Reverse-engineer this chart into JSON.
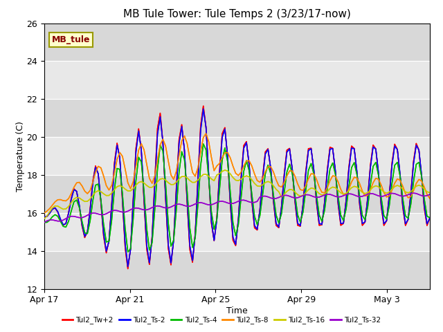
{
  "title": "MB Tule Tower: Tule Temps 2 (3/23/17-now)",
  "xlabel": "Time",
  "ylabel": "Temperature (C)",
  "ylim": [
    12,
    26
  ],
  "yticks": [
    12,
    14,
    16,
    18,
    20,
    22,
    24,
    26
  ],
  "bg_color": "#e8e8e8",
  "legend_label": "MB_tule",
  "legend_box_facecolor": "#ffffcc",
  "legend_box_edgecolor": "#999900",
  "series_colors": [
    "#ff0000",
    "#0000ff",
    "#00bb00",
    "#ff8800",
    "#cccc00",
    "#9900cc"
  ],
  "series_labels": [
    "Tul2_Tw+2",
    "Tul2_Ts-2",
    "Tul2_Ts-4",
    "Tul2_Ts-8",
    "Tul2_Ts-16",
    "Tul2_Ts-32"
  ],
  "x_tick_labels": [
    "Apr 17",
    "Apr 21",
    "Apr 25",
    "Apr 29",
    "May 3"
  ],
  "x_tick_positions": [
    0,
    4,
    8,
    12,
    16
  ]
}
